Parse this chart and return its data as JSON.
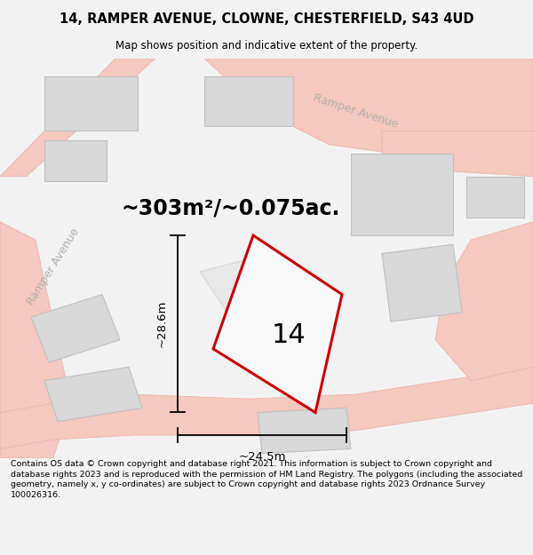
{
  "title": "14, RAMPER AVENUE, CLOWNE, CHESTERFIELD, S43 4UD",
  "subtitle": "Map shows position and indicative extent of the property.",
  "area_text": "~303m²/~0.075ac.",
  "property_number": "14",
  "dim_height": "~28.6m",
  "dim_width": "~24.5m",
  "footer": "Contains OS data © Crown copyright and database right 2021. This information is subject to Crown copyright and database rights 2023 and is reproduced with the permission of HM Land Registry. The polygons (including the associated geometry, namely x, y co-ordinates) are subject to Crown copyright and database rights 2023 Ordnance Survey 100026316.",
  "bg_color": "#f2f2f2",
  "map_bg": "#ffffff",
  "road_color": "#f5c8c0",
  "building_color": "#d8d8d8",
  "building_edge": "#c0c0c0",
  "plot_color": "#cc0000",
  "plot_fill": "#f8f8f8",
  "road_edge": "#e8b0a8",
  "street_label_color": "#b0b0b0",
  "dim_color": "#000000"
}
